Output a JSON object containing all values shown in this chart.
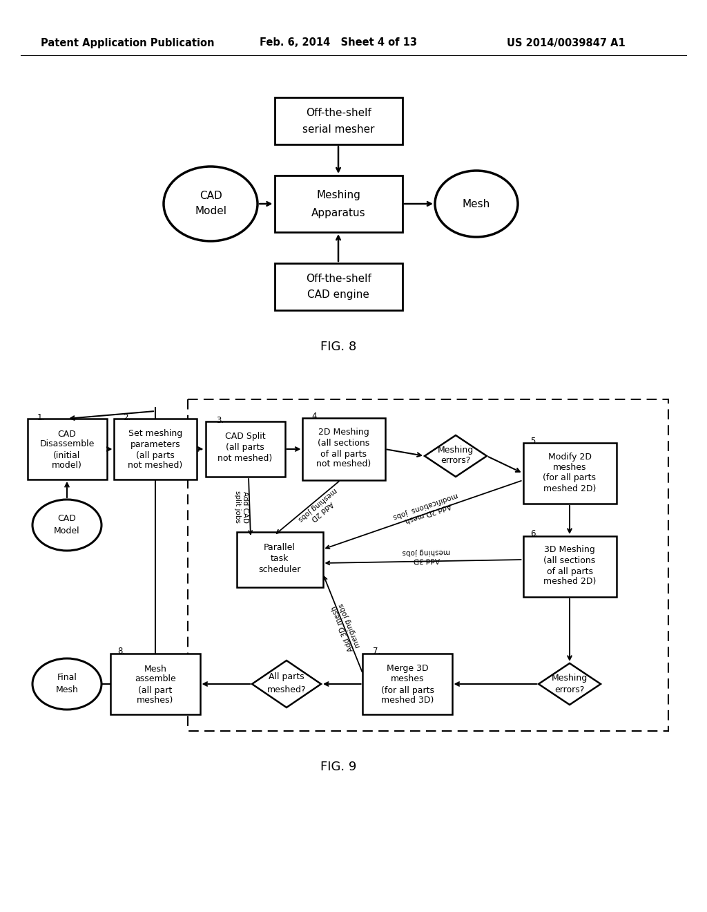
{
  "header_left": "Patent Application Publication",
  "header_center": "Feb. 6, 2014   Sheet 4 of 13",
  "header_right": "US 2014/0039847 A1",
  "fig8_label": "FIG. 8",
  "fig9_label": "FIG. 9",
  "bg": "#ffffff",
  "lc": "#000000"
}
